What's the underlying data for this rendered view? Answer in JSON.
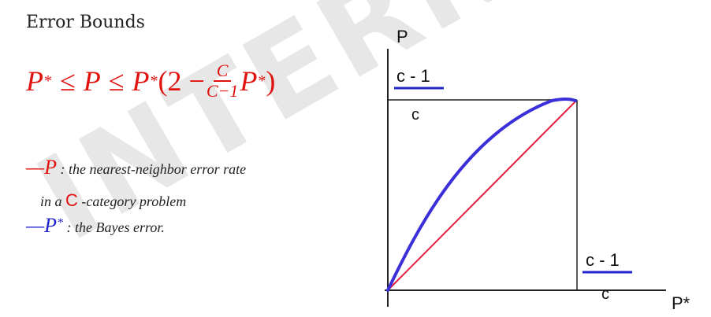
{
  "title": "Error Bounds",
  "formula": {
    "p_star": "P",
    "star": "*",
    "leq": "≤",
    "p": "P",
    "open": "(2 −",
    "frac_num": "C",
    "frac_den": "C−1",
    "close": ")"
  },
  "legend": [
    {
      "dash": "—",
      "symbol": "P",
      "sep": " : ",
      "text": "the nearest-neighbor error rate"
    },
    {
      "pre": "in a ",
      "symbol": "C",
      "text": " -category problem"
    },
    {
      "dash": "—",
      "symbol": "P",
      "star": "*",
      "sep": " :  ",
      "text": "the Bayes error."
    }
  ],
  "plot": {
    "y_label": "P",
    "x_label": "P*",
    "y_tick_num": "c - 1",
    "y_tick_den": "c",
    "x_tick_num": "c - 1",
    "x_tick_den": "c",
    "colors": {
      "upper_bound": "#3a2fd8",
      "lower_bound": "#e0203c",
      "box": "#222222"
    }
  },
  "watermark": "INTERNA"
}
